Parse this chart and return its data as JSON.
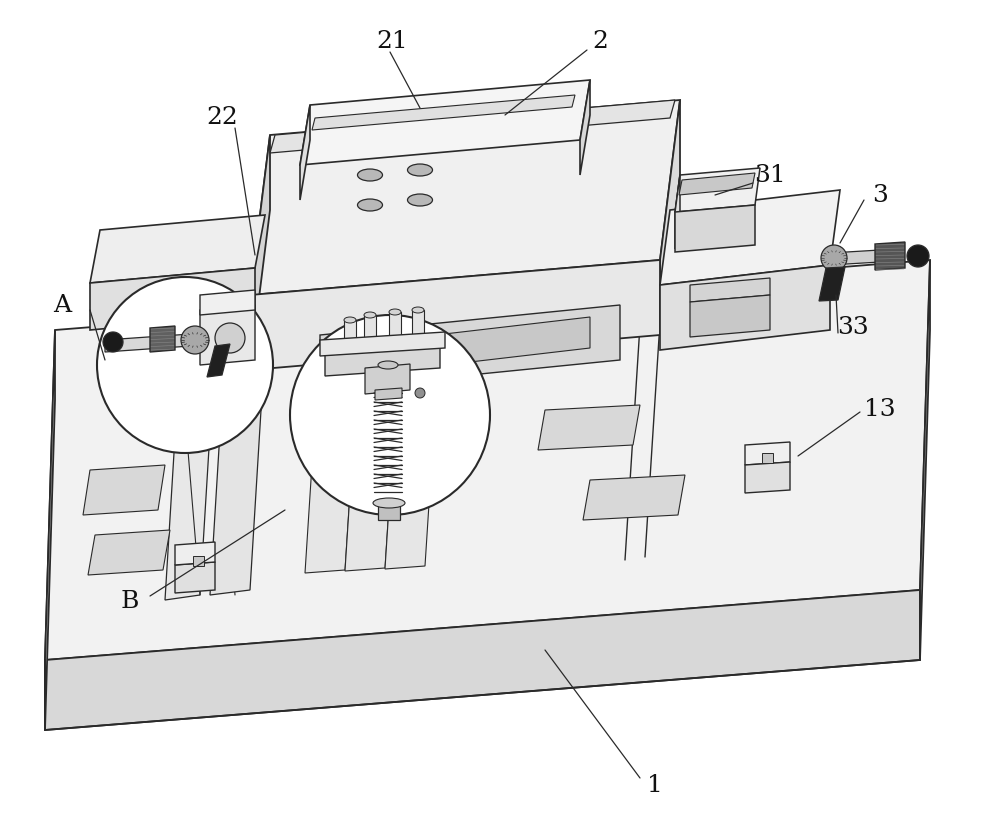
{
  "figure_width": 10.0,
  "figure_height": 8.31,
  "dpi": 100,
  "bg_color": "#ffffff",
  "lc": "#2a2a2a",
  "fc_lightest": "#f8f8f8",
  "fc_light": "#eeeeee",
  "fc_mid": "#e0e0e0",
  "fc_dark": "#cccccc",
  "fc_darker": "#b8b8b8",
  "fc_black": "#222222",
  "fc_gray": "#888888"
}
